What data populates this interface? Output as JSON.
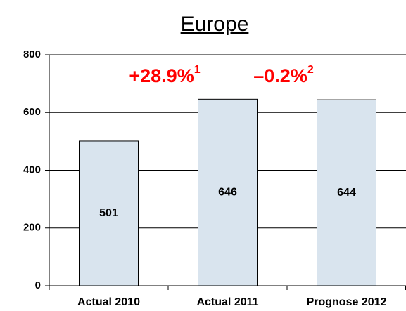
{
  "chart_data": {
    "type": "bar",
    "title": "Europe",
    "categories": [
      "Actual 2010",
      "Actual 2011",
      "Prognose 2012"
    ],
    "values": [
      501,
      646,
      644
    ],
    "color": "#d9e4ee",
    "ylim": [
      0,
      800
    ],
    "yticks": [
      0,
      200,
      400,
      600,
      800
    ],
    "grid": true,
    "annotations": [
      {
        "text": "+28.9%",
        "note": "1"
      },
      {
        "text": "–0.2%",
        "note": "2"
      }
    ]
  }
}
